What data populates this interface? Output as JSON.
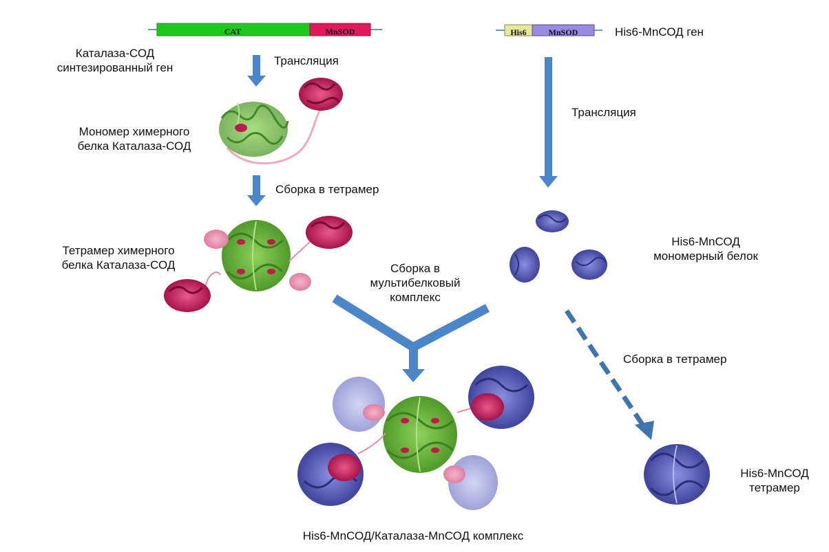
{
  "genes": {
    "left": {
      "seg1": "CAT",
      "seg2": "MnSOD",
      "caption_line1": "Каталаза-СОД",
      "caption_line2": "синтезированный ген"
    },
    "right": {
      "seg1": "His6",
      "seg2": "MnSOD",
      "caption": "His6-MnСОД ген"
    }
  },
  "steps": {
    "translation_left": "Трансляция",
    "translation_right": "Трансляция",
    "tetramer_assembly_left": "Сборка в тетрамер",
    "tetramer_assembly_right": "Сборка в тетрамер",
    "multiprotein_line1": "Сборка в",
    "multiprotein_line2": "мультибелковый",
    "multiprotein_line3": "комплекс"
  },
  "structures": {
    "monomer_line1": "Мономер химерного",
    "monomer_line2": "белка Каталаза-СОД",
    "tetramer_line1": "Тетрамер химерного",
    "tetramer_line2": "белка Каталаза-СОД",
    "his_monomer_line1": "His6-MnСОД",
    "his_monomer_line2": "мономерный белок",
    "his_tetramer_line1": "His6-MnСОД",
    "his_tetramer_line2": "тетрамер",
    "complex": "His6-MnСОД/Каталаза-MnСОД комплекс"
  },
  "colors": {
    "catalase": "#6db83c",
    "sod_pink": "#d1245e",
    "his6_yellow": "#e8e89a",
    "sod_purple": "#9a8ae0",
    "his_protein": "#5a5fb5",
    "arrow": "#4a86c8"
  }
}
